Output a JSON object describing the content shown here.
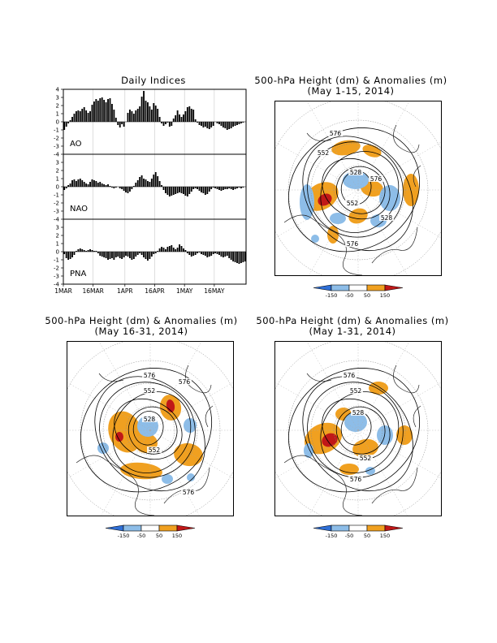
{
  "titles": {
    "indices": "Daily Indices",
    "map1_line1": "500-hPa Height (dm) & Anomalies (m)",
    "map1_line2": "(May 1-15, 2014)",
    "map2_line1": "500-hPa Height (dm) & Anomalies (m)",
    "map2_line2": "(May 16-31, 2014)",
    "map3_line1": "500-hPa Height (dm) & Anomalies (m)",
    "map3_line2": "(May 1-31, 2014)"
  },
  "chart_data": [
    {
      "type": "bar",
      "title": "Daily Indices",
      "x_tick_labels": [
        "1MAR",
        "16MAR",
        "1APR",
        "16APR",
        "1MAY",
        "16MAY"
      ],
      "y_tick_labels": [
        "4",
        "3",
        "2",
        "1",
        "0",
        "-1",
        "-2",
        "-3",
        "-4"
      ],
      "ylim": [
        -4,
        4
      ],
      "grid": true,
      "series": [
        {
          "name": "AO",
          "values": [
            -1.0,
            -0.6,
            -0.2,
            0.2,
            0.6,
            1.0,
            1.3,
            1.4,
            1.3,
            1.6,
            1.8,
            1.4,
            1.1,
            1.3,
            2.1,
            2.5,
            2.8,
            2.6,
            2.9,
            3.0,
            2.7,
            2.4,
            2.8,
            2.9,
            2.2,
            1.5,
            0.5,
            -0.4,
            -0.7,
            -0.3,
            -0.6,
            0.0,
            1.1,
            1.5,
            1.3,
            1.0,
            1.4,
            1.6,
            1.9,
            3.1,
            3.8,
            2.6,
            2.4,
            1.9,
            1.5,
            2.3,
            2.0,
            1.6,
            0.6,
            -0.2,
            -0.5,
            -0.3,
            -0.1,
            -0.6,
            -0.5,
            0.4,
            0.8,
            1.4,
            0.9,
            0.6,
            0.9,
            1.3,
            1.8,
            1.9,
            1.6,
            1.5,
            0.3,
            -0.1,
            -0.4,
            -0.5,
            -0.7,
            -0.6,
            -0.8,
            -0.9,
            -0.7,
            -0.5,
            0.0,
            -0.2,
            -0.3,
            -0.5,
            -0.7,
            -0.8,
            -1.0,
            -0.9,
            -0.8,
            -0.6,
            -0.5,
            -0.4,
            -0.3,
            -0.2,
            -0.1,
            0.0
          ]
        },
        {
          "name": "NAO",
          "values": [
            -0.4,
            -0.2,
            0.2,
            0.4,
            0.8,
            0.9,
            0.7,
            0.9,
            1.0,
            0.8,
            0.6,
            0.4,
            0.3,
            0.6,
            0.9,
            0.8,
            0.7,
            0.5,
            0.6,
            0.4,
            0.3,
            0.2,
            0.3,
            0.1,
            -0.1,
            -0.2,
            -0.1,
            0.0,
            -0.2,
            -0.3,
            -0.5,
            -0.7,
            -0.8,
            -0.6,
            -0.3,
            0.1,
            0.5,
            0.8,
            1.2,
            1.4,
            1.0,
            0.9,
            0.7,
            0.6,
            1.0,
            1.5,
            1.8,
            1.3,
            0.7,
            0.2,
            -0.4,
            -0.8,
            -1.0,
            -1.2,
            -1.1,
            -1.0,
            -0.9,
            -0.8,
            -0.7,
            -0.8,
            -0.9,
            -1.1,
            -1.2,
            -0.9,
            -0.6,
            -0.3,
            -0.2,
            -0.3,
            -0.5,
            -0.7,
            -0.8,
            -1.0,
            -0.9,
            -0.6,
            -0.3,
            -0.1,
            -0.2,
            -0.3,
            -0.4,
            -0.5,
            -0.4,
            -0.3,
            -0.3,
            -0.2,
            -0.3,
            -0.4,
            -0.3,
            -0.2,
            -0.1,
            -0.2,
            -0.1,
            0.0
          ]
        },
        {
          "name": "PNA",
          "values": [
            -0.3,
            -0.8,
            -1.0,
            -0.9,
            -0.7,
            -0.4,
            0.1,
            0.3,
            0.4,
            0.3,
            0.2,
            0.1,
            0.2,
            0.3,
            0.2,
            0.1,
            0.1,
            -0.2,
            -0.5,
            -0.6,
            -0.7,
            -0.8,
            -1.0,
            -0.9,
            -0.8,
            -1.0,
            -0.7,
            -0.6,
            -0.8,
            -0.9,
            -0.7,
            -0.5,
            -0.6,
            -0.8,
            -1.0,
            -0.9,
            -0.6,
            -0.4,
            -0.2,
            -0.4,
            -0.7,
            -0.9,
            -1.1,
            -0.9,
            -0.6,
            -0.3,
            -0.2,
            0.1,
            0.4,
            0.6,
            0.5,
            0.3,
            0.6,
            0.7,
            0.8,
            0.5,
            0.3,
            0.5,
            0.9,
            0.7,
            0.4,
            0.2,
            -0.2,
            -0.4,
            -0.6,
            -0.5,
            -0.4,
            -0.2,
            -0.1,
            -0.3,
            -0.4,
            -0.5,
            -0.7,
            -0.6,
            -0.5,
            -0.3,
            -0.2,
            -0.3,
            -0.4,
            -0.6,
            -0.7,
            -0.6,
            -0.5,
            -0.8,
            -1.0,
            -1.2,
            -1.3,
            -1.4,
            -1.5,
            -1.4,
            -1.3,
            -1.2
          ]
        }
      ]
    },
    {
      "type": "heatmap",
      "title": "500-hPa Height (dm) & Anomalies (m)",
      "subtitle": "(May 1-15, 2014)",
      "contour_labels": [
        "576",
        "552",
        "528",
        "576",
        "552",
        "528",
        "576"
      ],
      "colorbar_ticks": [
        "-150",
        "-50",
        "50",
        "150"
      ],
      "colorbar_colors": [
        "#2f6fd6",
        "#8dbde8",
        "#ffffff",
        "#f0a020",
        "#c01818"
      ]
    },
    {
      "type": "heatmap",
      "title": "500-hPa Height (dm) & Anomalies (m)",
      "subtitle": "(May 16-31, 2014)",
      "contour_labels": [
        "576",
        "576",
        "552",
        "528",
        "552",
        "576"
      ],
      "colorbar_ticks": [
        "-150",
        "-50",
        "50",
        "150"
      ],
      "colorbar_colors": [
        "#2f6fd6",
        "#8dbde8",
        "#ffffff",
        "#f0a020",
        "#c01818"
      ]
    },
    {
      "type": "heatmap",
      "title": "500-hPa Height (dm) & Anomalies (m)",
      "subtitle": "(May 1-31, 2014)",
      "contour_labels": [
        "576",
        "552",
        "528",
        "552",
        "576"
      ],
      "colorbar_ticks": [
        "-150",
        "-50",
        "50",
        "150"
      ],
      "colorbar_colors": [
        "#2f6fd6",
        "#8dbde8",
        "#ffffff",
        "#f0a020",
        "#c01818"
      ]
    }
  ],
  "colors": {
    "orange": "#f0a020",
    "red": "#c01818",
    "lightblue": "#8dbde8",
    "blue": "#2f6fd6"
  }
}
